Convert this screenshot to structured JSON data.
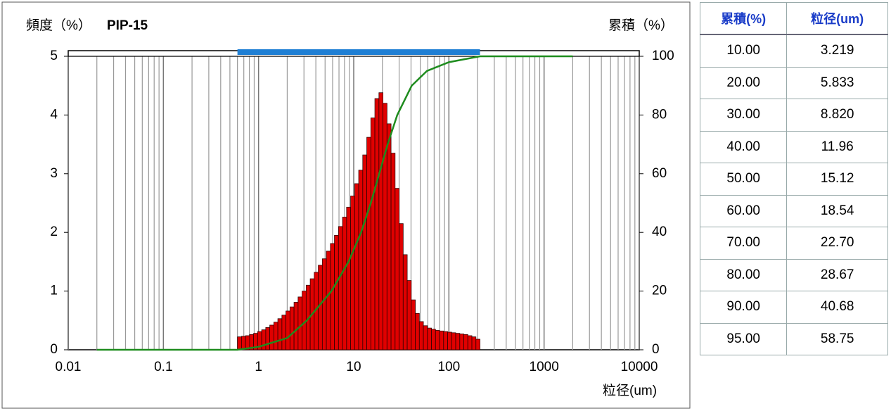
{
  "chart_data": {
    "type": "histogram",
    "title": "PIP-15",
    "y_label": "頻度（%）",
    "y2_label": "累積（%）",
    "x_label": "粒径(um)",
    "log_x": true,
    "grid": true,
    "xlim": [
      0.01,
      10000
    ],
    "xticks": [
      0.01,
      0.1,
      1,
      10,
      100,
      1000,
      10000
    ],
    "ylim": [
      0,
      5
    ],
    "yticks": [
      0,
      1,
      2,
      3,
      4,
      5
    ],
    "y2lim": [
      0,
      100
    ],
    "y2ticks": [
      0,
      20,
      40,
      60,
      80,
      100
    ],
    "color": "#e00000",
    "range_color": "#1f7fd4",
    "measurement_range": [
      0.6,
      212.1
    ],
    "bins": [
      0.6,
      0.662,
      0.73,
      0.805,
      0.887,
      0.978,
      1.079,
      1.19,
      1.312,
      1.447,
      1.595,
      1.759,
      1.94,
      2.139,
      2.359,
      2.602,
      2.869,
      3.164,
      3.489,
      3.847,
      4.243,
      4.679,
      5.159,
      5.689,
      6.274,
      6.918,
      7.629,
      8.413,
      9.278,
      10.23,
      11.28,
      12.44,
      13.72,
      15.13,
      16.68,
      18.4,
      20.29,
      22.37,
      24.67,
      27.2,
      30.0,
      33.08,
      36.48,
      40.23,
      44.36,
      48.92,
      53.95,
      59.49,
      65.6,
      72.34,
      79.77,
      87.97,
      97.0,
      107.0,
      117.9,
      130.1,
      143.4,
      158.1,
      174.4,
      192.3,
      212.1
    ],
    "values": [
      0.22,
      0.23,
      0.24,
      0.26,
      0.28,
      0.31,
      0.34,
      0.38,
      0.42,
      0.47,
      0.53,
      0.59,
      0.66,
      0.73,
      0.81,
      0.9,
      1.0,
      1.1,
      1.21,
      1.32,
      1.44,
      1.55,
      1.68,
      1.81,
      1.95,
      2.1,
      2.26,
      2.43,
      2.62,
      2.83,
      3.06,
      3.32,
      3.62,
      3.95,
      4.28,
      4.38,
      4.2,
      3.85,
      3.35,
      2.75,
      2.15,
      1.62,
      1.18,
      0.85,
      0.62,
      0.48,
      0.41,
      0.37,
      0.35,
      0.33,
      0.32,
      0.31,
      0.3,
      0.29,
      0.28,
      0.27,
      0.26,
      0.24,
      0.22,
      0.18
    ],
    "line": {
      "type": "line",
      "axis": "y2",
      "color": "#1e8c1e",
      "x": [
        0.02,
        0.6,
        1,
        2,
        3.219,
        5.833,
        8.82,
        11.96,
        15.12,
        18.54,
        22.7,
        28.67,
        40.68,
        58.75,
        100,
        212,
        2000
      ],
      "values": [
        0,
        0,
        1,
        4,
        10,
        20,
        30,
        40,
        50,
        60,
        70,
        80,
        90,
        95,
        98,
        100,
        100
      ]
    }
  },
  "table": {
    "header": [
      "累積(%)",
      "粒径(um)"
    ],
    "rows": [
      [
        "10.00",
        "3.219"
      ],
      [
        "20.00",
        "5.833"
      ],
      [
        "30.00",
        "8.820"
      ],
      [
        "40.00",
        "11.96"
      ],
      [
        "50.00",
        "15.12"
      ],
      [
        "60.00",
        "18.54"
      ],
      [
        "70.00",
        "22.70"
      ],
      [
        "80.00",
        "28.67"
      ],
      [
        "90.00",
        "40.68"
      ],
      [
        "95.00",
        "58.75"
      ]
    ]
  }
}
